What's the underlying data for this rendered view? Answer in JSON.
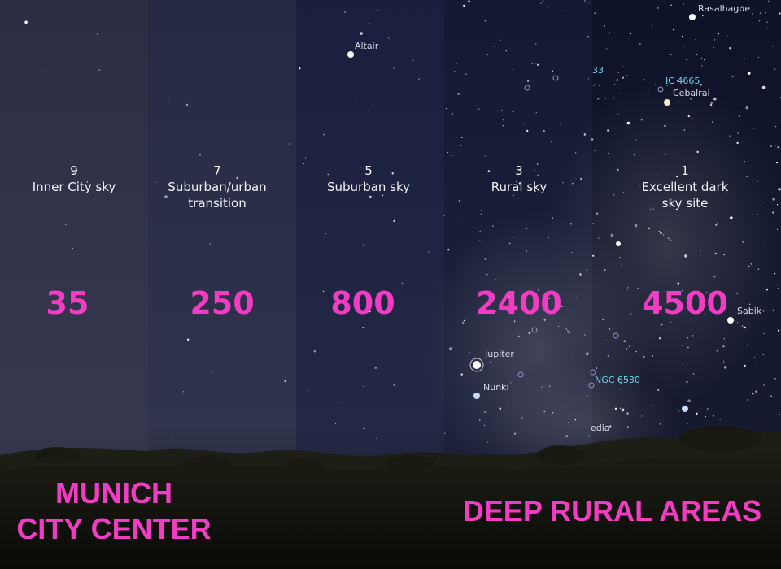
{
  "panels": [
    {
      "bortle": "9",
      "label": "Inner City sky",
      "stars": "35"
    },
    {
      "bortle": "7",
      "label": "Suburban/urban\ntransition",
      "stars": "250"
    },
    {
      "bortle": "5",
      "label": "Suburban sky",
      "stars": "800"
    },
    {
      "bortle": "3",
      "label": "Rural sky",
      "stars": "2400"
    },
    {
      "bortle": "1",
      "label": "Excellent dark\nsky site",
      "stars": "4500"
    }
  ],
  "star_labels": {
    "rasalhague": "Rasalhague",
    "altair": "Altair",
    "ic4665": "IC 4665",
    "cebalrai": "Cebalrai",
    "m33": "33",
    "sabik": "Sabik",
    "jupiter": "Jupiter",
    "nunki": "Nunki",
    "ngc6530": "NGC 6530",
    "media": "edia"
  },
  "footer": {
    "left_line1": "MUNICH",
    "left_line2": "CITY CENTER",
    "right": "DEEP RURAL AREAS"
  },
  "colors": {
    "accent": "#f23cc4",
    "label_cyan": "#6fd6e8"
  }
}
